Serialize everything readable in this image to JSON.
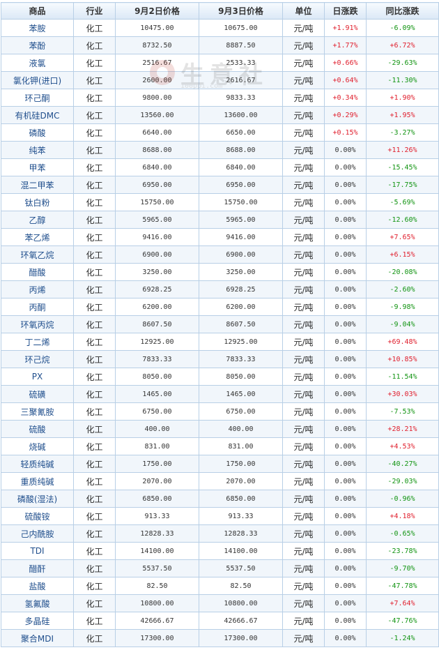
{
  "watermark": {
    "text": "生意社",
    "url": "100ppi.com"
  },
  "headers": [
    "商品",
    "行业",
    "9月2日价格",
    "9月3日价格",
    "单位",
    "日涨跌",
    "同比涨跌"
  ],
  "rows": [
    {
      "name": "苯胺",
      "industry": "化工",
      "p1": "10475.00",
      "p2": "10675.00",
      "unit": "元/吨",
      "day": "+1.91%",
      "yoy": "-6.09%"
    },
    {
      "name": "苯酚",
      "industry": "化工",
      "p1": "8732.50",
      "p2": "8887.50",
      "unit": "元/吨",
      "day": "+1.77%",
      "yoy": "+6.72%"
    },
    {
      "name": "液氯",
      "industry": "化工",
      "p1": "2516.67",
      "p2": "2533.33",
      "unit": "元/吨",
      "day": "+0.66%",
      "yoy": "-29.63%"
    },
    {
      "name": "氯化钾(进口)",
      "industry": "化工",
      "p1": "2600.00",
      "p2": "2616.67",
      "unit": "元/吨",
      "day": "+0.64%",
      "yoy": "-11.30%"
    },
    {
      "name": "环己酮",
      "industry": "化工",
      "p1": "9800.00",
      "p2": "9833.33",
      "unit": "元/吨",
      "day": "+0.34%",
      "yoy": "+1.90%"
    },
    {
      "name": "有机硅DMC",
      "industry": "化工",
      "p1": "13560.00",
      "p2": "13600.00",
      "unit": "元/吨",
      "day": "+0.29%",
      "yoy": "+1.95%"
    },
    {
      "name": "磷酸",
      "industry": "化工",
      "p1": "6640.00",
      "p2": "6650.00",
      "unit": "元/吨",
      "day": "+0.15%",
      "yoy": "-3.27%"
    },
    {
      "name": "纯苯",
      "industry": "化工",
      "p1": "8688.00",
      "p2": "8688.00",
      "unit": "元/吨",
      "day": "0.00%",
      "yoy": "+11.26%"
    },
    {
      "name": "甲苯",
      "industry": "化工",
      "p1": "6840.00",
      "p2": "6840.00",
      "unit": "元/吨",
      "day": "0.00%",
      "yoy": "-15.45%"
    },
    {
      "name": "混二甲苯",
      "industry": "化工",
      "p1": "6950.00",
      "p2": "6950.00",
      "unit": "元/吨",
      "day": "0.00%",
      "yoy": "-17.75%"
    },
    {
      "name": "钛白粉",
      "industry": "化工",
      "p1": "15750.00",
      "p2": "15750.00",
      "unit": "元/吨",
      "day": "0.00%",
      "yoy": "-5.69%"
    },
    {
      "name": "乙醇",
      "industry": "化工",
      "p1": "5965.00",
      "p2": "5965.00",
      "unit": "元/吨",
      "day": "0.00%",
      "yoy": "-12.60%"
    },
    {
      "name": "苯乙烯",
      "industry": "化工",
      "p1": "9416.00",
      "p2": "9416.00",
      "unit": "元/吨",
      "day": "0.00%",
      "yoy": "+7.65%"
    },
    {
      "name": "环氧乙烷",
      "industry": "化工",
      "p1": "6900.00",
      "p2": "6900.00",
      "unit": "元/吨",
      "day": "0.00%",
      "yoy": "+6.15%"
    },
    {
      "name": "醋酸",
      "industry": "化工",
      "p1": "3250.00",
      "p2": "3250.00",
      "unit": "元/吨",
      "day": "0.00%",
      "yoy": "-20.08%"
    },
    {
      "name": "丙烯",
      "industry": "化工",
      "p1": "6928.25",
      "p2": "6928.25",
      "unit": "元/吨",
      "day": "0.00%",
      "yoy": "-2.60%"
    },
    {
      "name": "丙酮",
      "industry": "化工",
      "p1": "6200.00",
      "p2": "6200.00",
      "unit": "元/吨",
      "day": "0.00%",
      "yoy": "-9.98%"
    },
    {
      "name": "环氧丙烷",
      "industry": "化工",
      "p1": "8607.50",
      "p2": "8607.50",
      "unit": "元/吨",
      "day": "0.00%",
      "yoy": "-9.04%"
    },
    {
      "name": "丁二烯",
      "industry": "化工",
      "p1": "12925.00",
      "p2": "12925.00",
      "unit": "元/吨",
      "day": "0.00%",
      "yoy": "+69.48%"
    },
    {
      "name": "环己烷",
      "industry": "化工",
      "p1": "7833.33",
      "p2": "7833.33",
      "unit": "元/吨",
      "day": "0.00%",
      "yoy": "+10.85%"
    },
    {
      "name": "PX",
      "industry": "化工",
      "p1": "8050.00",
      "p2": "8050.00",
      "unit": "元/吨",
      "day": "0.00%",
      "yoy": "-11.54%"
    },
    {
      "name": "硫磺",
      "industry": "化工",
      "p1": "1465.00",
      "p2": "1465.00",
      "unit": "元/吨",
      "day": "0.00%",
      "yoy": "+30.03%"
    },
    {
      "name": "三聚氰胺",
      "industry": "化工",
      "p1": "6750.00",
      "p2": "6750.00",
      "unit": "元/吨",
      "day": "0.00%",
      "yoy": "-7.53%"
    },
    {
      "name": "硫酸",
      "industry": "化工",
      "p1": "400.00",
      "p2": "400.00",
      "unit": "元/吨",
      "day": "0.00%",
      "yoy": "+28.21%"
    },
    {
      "name": "烧碱",
      "industry": "化工",
      "p1": "831.00",
      "p2": "831.00",
      "unit": "元/吨",
      "day": "0.00%",
      "yoy": "+4.53%"
    },
    {
      "name": "轻质纯碱",
      "industry": "化工",
      "p1": "1750.00",
      "p2": "1750.00",
      "unit": "元/吨",
      "day": "0.00%",
      "yoy": "-40.27%"
    },
    {
      "name": "重质纯碱",
      "industry": "化工",
      "p1": "2070.00",
      "p2": "2070.00",
      "unit": "元/吨",
      "day": "0.00%",
      "yoy": "-29.03%"
    },
    {
      "name": "磷酸(湿法)",
      "industry": "化工",
      "p1": "6850.00",
      "p2": "6850.00",
      "unit": "元/吨",
      "day": "0.00%",
      "yoy": "-0.96%"
    },
    {
      "name": "硫酸铵",
      "industry": "化工",
      "p1": "913.33",
      "p2": "913.33",
      "unit": "元/吨",
      "day": "0.00%",
      "yoy": "+4.18%"
    },
    {
      "name": "己内酰胺",
      "industry": "化工",
      "p1": "12828.33",
      "p2": "12828.33",
      "unit": "元/吨",
      "day": "0.00%",
      "yoy": "-0.65%"
    },
    {
      "name": "TDI",
      "industry": "化工",
      "p1": "14100.00",
      "p2": "14100.00",
      "unit": "元/吨",
      "day": "0.00%",
      "yoy": "-23.78%"
    },
    {
      "name": "醋酐",
      "industry": "化工",
      "p1": "5537.50",
      "p2": "5537.50",
      "unit": "元/吨",
      "day": "0.00%",
      "yoy": "-9.70%"
    },
    {
      "name": "盐酸",
      "industry": "化工",
      "p1": "82.50",
      "p2": "82.50",
      "unit": "元/吨",
      "day": "0.00%",
      "yoy": "-47.78%"
    },
    {
      "name": "氢氟酸",
      "industry": "化工",
      "p1": "10800.00",
      "p2": "10800.00",
      "unit": "元/吨",
      "day": "0.00%",
      "yoy": "+7.64%"
    },
    {
      "name": "多晶硅",
      "industry": "化工",
      "p1": "42666.67",
      "p2": "42666.67",
      "unit": "元/吨",
      "day": "0.00%",
      "yoy": "-47.76%"
    },
    {
      "name": "聚合MDI",
      "industry": "化工",
      "p1": "17300.00",
      "p2": "17300.00",
      "unit": "元/吨",
      "day": "0.00%",
      "yoy": "-1.24%"
    }
  ],
  "colors": {
    "up": "#e0202e",
    "down": "#129412",
    "link": "#1f4e8c",
    "border": "#b8cfe6"
  }
}
